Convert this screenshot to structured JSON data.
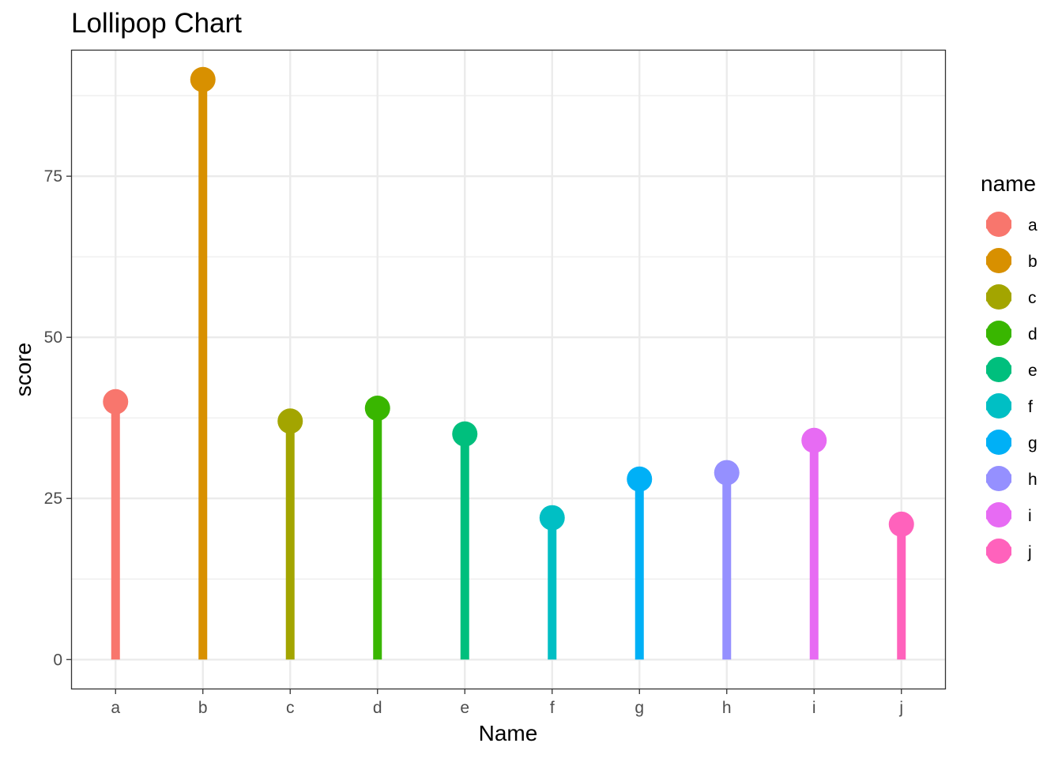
{
  "chart_data": {
    "type": "lollipop",
    "title": "Lollipop Chart",
    "xlabel": "Name",
    "ylabel": "score",
    "categories": [
      "a",
      "b",
      "c",
      "d",
      "e",
      "f",
      "g",
      "h",
      "i",
      "j"
    ],
    "values": [
      40,
      90,
      37,
      39,
      35,
      22,
      28,
      29,
      34,
      21
    ],
    "ylim": [
      -4.5,
      94.5
    ],
    "yticks": [
      0,
      25,
      50,
      75
    ],
    "grid": true,
    "legend": {
      "title": "name",
      "position": "right",
      "entries": [
        "a",
        "b",
        "c",
        "d",
        "e",
        "f",
        "g",
        "h",
        "i",
        "j"
      ]
    },
    "colors": [
      "#F8766D",
      "#D89000",
      "#A3A500",
      "#39B600",
      "#00BF7D",
      "#00BFC4",
      "#00B0F6",
      "#9590FF",
      "#E76BF3",
      "#FF62BC"
    ]
  }
}
